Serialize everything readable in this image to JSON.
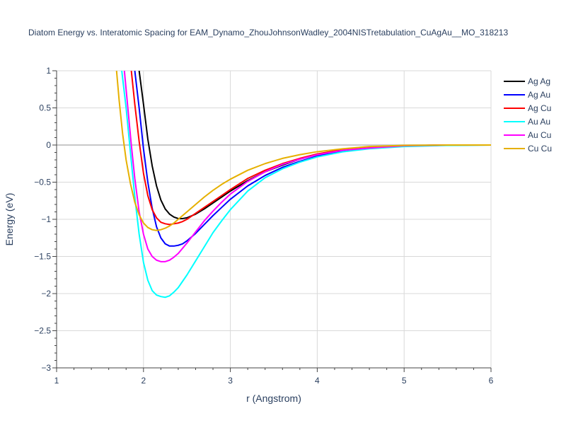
{
  "chart_data": {
    "type": "line",
    "title": "Diatom Energy vs. Interatomic Spacing for EAM_Dynamo_ZhouJohnsonWadley_2004NISTretabulation_CuAgAu__MO_318213",
    "xlabel": "r (Angstrom)",
    "ylabel": "Energy (eV)",
    "xlim": [
      1,
      6
    ],
    "ylim": [
      -3,
      1
    ],
    "x_ticks": [
      1,
      2,
      3,
      4,
      5,
      6
    ],
    "x_tick_labels": [
      "1",
      "2",
      "3",
      "4",
      "5",
      "6"
    ],
    "y_ticks": [
      1,
      0.5,
      0,
      -0.5,
      -1,
      -1.5,
      -2,
      -2.5,
      -3
    ],
    "y_tick_labels": [
      "1",
      "0.5",
      "0",
      "−0.5",
      "−1",
      "−1.5",
      "−2",
      "−2.5",
      "−3"
    ],
    "grid": true,
    "legend_position": "top-right",
    "series": [
      {
        "name": "Ag Ag",
        "color": "#000000",
        "x": [
          1.95,
          2.0,
          2.05,
          2.1,
          2.15,
          2.2,
          2.25,
          2.3,
          2.35,
          2.4,
          2.45,
          2.5,
          2.6,
          2.7,
          2.8,
          2.9,
          3.0,
          3.2,
          3.4,
          3.6,
          3.8,
          4.0,
          4.3,
          4.6,
          5.0,
          5.5,
          6.0
        ],
        "y": [
          1.0,
          0.55,
          0.08,
          -0.28,
          -0.55,
          -0.74,
          -0.86,
          -0.93,
          -0.97,
          -0.99,
          -0.99,
          -0.98,
          -0.93,
          -0.86,
          -0.78,
          -0.7,
          -0.62,
          -0.48,
          -0.36,
          -0.27,
          -0.19,
          -0.13,
          -0.07,
          -0.03,
          -0.01,
          0.0,
          0.0
        ]
      },
      {
        "name": "Ag Au",
        "color": "#0000ff",
        "x": [
          1.9,
          1.95,
          2.0,
          2.05,
          2.1,
          2.15,
          2.2,
          2.25,
          2.3,
          2.35,
          2.4,
          2.45,
          2.5,
          2.6,
          2.7,
          2.8,
          2.9,
          3.0,
          3.2,
          3.4,
          3.6,
          3.8,
          4.0,
          4.3,
          4.6,
          5.0,
          5.5,
          6.0
        ],
        "y": [
          1.0,
          0.5,
          -0.05,
          -0.5,
          -0.85,
          -1.1,
          -1.25,
          -1.33,
          -1.36,
          -1.36,
          -1.35,
          -1.33,
          -1.29,
          -1.19,
          -1.07,
          -0.95,
          -0.84,
          -0.73,
          -0.55,
          -0.41,
          -0.3,
          -0.22,
          -0.15,
          -0.08,
          -0.04,
          -0.015,
          -0.003,
          0.0
        ]
      },
      {
        "name": "Ag Cu",
        "color": "#ff0000",
        "x": [
          1.86,
          1.9,
          1.95,
          2.0,
          2.05,
          2.1,
          2.15,
          2.2,
          2.25,
          2.3,
          2.35,
          2.4,
          2.45,
          2.5,
          2.6,
          2.7,
          2.8,
          2.9,
          3.0,
          3.2,
          3.4,
          3.6,
          3.8,
          4.0,
          4.3,
          4.6,
          5.0,
          5.5,
          6.0
        ],
        "y": [
          1.0,
          0.55,
          0.05,
          -0.38,
          -0.68,
          -0.87,
          -0.98,
          -1.04,
          -1.06,
          -1.07,
          -1.06,
          -1.05,
          -1.03,
          -1.0,
          -0.92,
          -0.84,
          -0.76,
          -0.68,
          -0.6,
          -0.45,
          -0.34,
          -0.25,
          -0.18,
          -0.12,
          -0.06,
          -0.03,
          -0.01,
          0.0,
          0.0
        ]
      },
      {
        "name": "Au Au",
        "color": "#00ffff",
        "x": [
          1.75,
          1.8,
          1.85,
          1.9,
          1.95,
          2.0,
          2.05,
          2.1,
          2.15,
          2.2,
          2.25,
          2.3,
          2.35,
          2.4,
          2.5,
          2.6,
          2.7,
          2.8,
          2.9,
          3.0,
          3.2,
          3.4,
          3.6,
          3.8,
          4.0,
          4.3,
          4.6,
          5.0,
          5.5,
          6.0
        ],
        "y": [
          1.0,
          0.5,
          -0.1,
          -0.7,
          -1.2,
          -1.58,
          -1.82,
          -1.96,
          -2.02,
          -2.04,
          -2.05,
          -2.03,
          -1.98,
          -1.92,
          -1.75,
          -1.56,
          -1.37,
          -1.18,
          -1.02,
          -0.87,
          -0.62,
          -0.44,
          -0.32,
          -0.23,
          -0.16,
          -0.09,
          -0.05,
          -0.02,
          -0.005,
          0.0
        ]
      },
      {
        "name": "Au Cu",
        "color": "#ff00ff",
        "x": [
          1.78,
          1.82,
          1.86,
          1.9,
          1.95,
          2.0,
          2.05,
          2.1,
          2.15,
          2.2,
          2.25,
          2.3,
          2.35,
          2.4,
          2.5,
          2.6,
          2.7,
          2.8,
          2.9,
          3.0,
          3.2,
          3.4,
          3.6,
          3.8,
          4.0,
          4.3,
          4.6,
          5.0,
          5.5,
          6.0
        ],
        "y": [
          1.0,
          0.5,
          0.0,
          -0.45,
          -0.9,
          -1.2,
          -1.4,
          -1.5,
          -1.55,
          -1.57,
          -1.57,
          -1.55,
          -1.51,
          -1.46,
          -1.32,
          -1.17,
          -1.02,
          -0.89,
          -0.77,
          -0.66,
          -0.49,
          -0.36,
          -0.26,
          -0.19,
          -0.13,
          -0.07,
          -0.04,
          -0.01,
          0.0,
          0.0
        ]
      },
      {
        "name": "Cu Cu",
        "color": "#e6b000",
        "x": [
          1.69,
          1.72,
          1.76,
          1.8,
          1.85,
          1.9,
          1.95,
          2.0,
          2.05,
          2.1,
          2.15,
          2.2,
          2.25,
          2.3,
          2.35,
          2.4,
          2.5,
          2.6,
          2.7,
          2.8,
          2.9,
          3.0,
          3.2,
          3.4,
          3.6,
          3.8,
          4.0,
          4.3,
          4.6,
          5.0,
          5.5,
          6.0
        ],
        "y": [
          1.0,
          0.6,
          0.15,
          -0.2,
          -0.52,
          -0.77,
          -0.94,
          -1.05,
          -1.11,
          -1.14,
          -1.15,
          -1.14,
          -1.12,
          -1.09,
          -1.05,
          -1.0,
          -0.9,
          -0.8,
          -0.7,
          -0.61,
          -0.53,
          -0.46,
          -0.34,
          -0.25,
          -0.18,
          -0.13,
          -0.09,
          -0.05,
          -0.02,
          -0.005,
          0.0,
          0.0
        ]
      }
    ]
  }
}
